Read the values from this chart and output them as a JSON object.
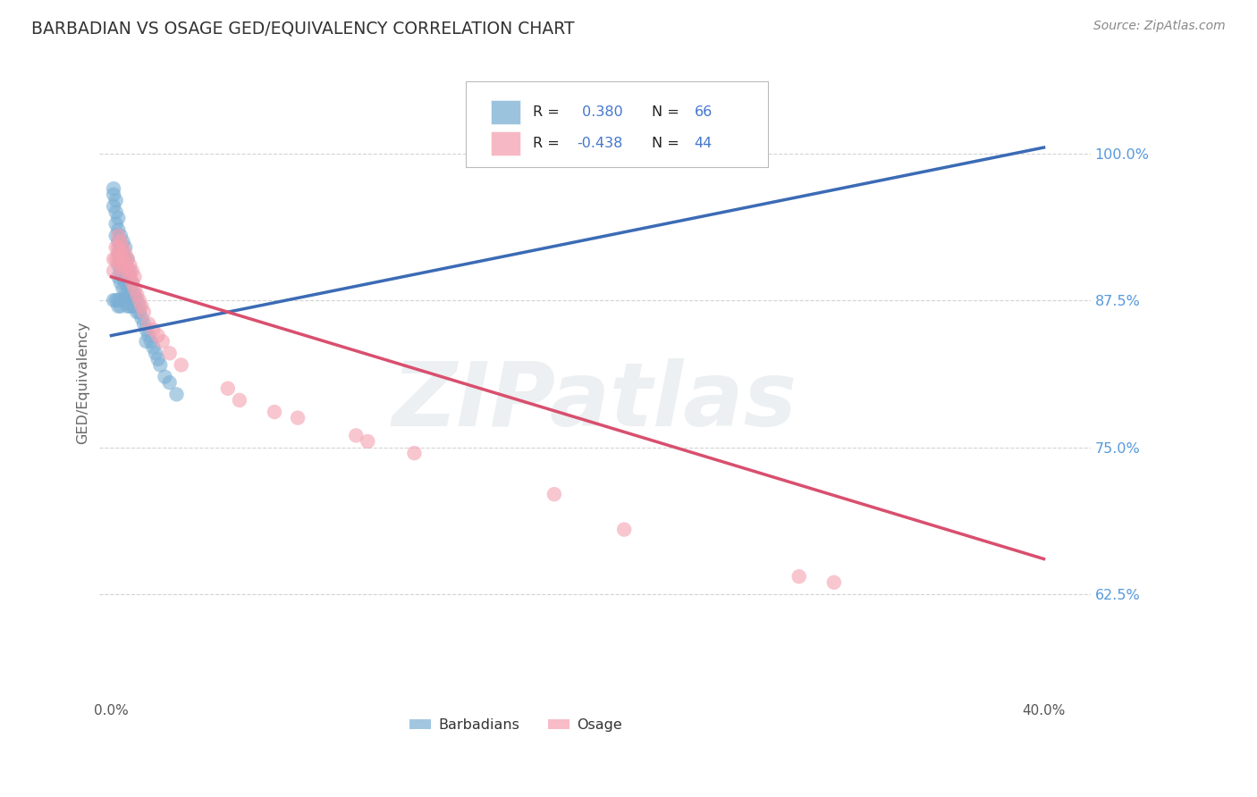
{
  "title": "BARBADIAN VS OSAGE GED/EQUIVALENCY CORRELATION CHART",
  "source": "Source: ZipAtlas.com",
  "xlim": [
    -0.005,
    0.42
  ],
  "ylim": [
    0.535,
    1.075
  ],
  "x_ticks": [
    0.0,
    0.1,
    0.2,
    0.3,
    0.4
  ],
  "x_tick_labels": [
    "0.0%",
    "",
    "",
    "",
    "40.0%"
  ],
  "y_ticks": [
    0.625,
    0.75,
    0.875,
    1.0
  ],
  "y_tick_labels": [
    "62.5%",
    "75.0%",
    "87.5%",
    "100.0%"
  ],
  "blue_R": 0.38,
  "blue_N": 66,
  "pink_R": -0.438,
  "pink_N": 44,
  "blue_color": "#7BAFD4",
  "pink_color": "#F4A0B0",
  "blue_line_color": "#3B6BB5",
  "pink_line_color": "#D94F6E",
  "ylabel": "GED/Equivalency",
  "watermark": "ZIPatlas",
  "watermark_color": "#AABBC8",
  "bg_color": "#FFFFFF",
  "grid_color": "#CCCCCC",
  "title_color": "#333333",
  "source_color": "#888888",
  "label_color_right": "#5599DD",
  "label_color_bottom": "#555555",
  "legend_text_color": "#222222",
  "legend_value_color": "#4477CC",
  "blue_x": [
    0.001,
    0.001,
    0.001,
    0.002,
    0.002,
    0.002,
    0.002,
    0.003,
    0.003,
    0.003,
    0.003,
    0.003,
    0.003,
    0.004,
    0.004,
    0.004,
    0.004,
    0.004,
    0.005,
    0.005,
    0.005,
    0.005,
    0.005,
    0.006,
    0.006,
    0.006,
    0.006,
    0.006,
    0.007,
    0.007,
    0.007,
    0.007,
    0.007,
    0.008,
    0.008,
    0.008,
    0.008,
    0.009,
    0.009,
    0.009,
    0.01,
    0.01,
    0.01,
    0.011,
    0.011,
    0.012,
    0.012,
    0.013,
    0.014,
    0.015,
    0.015,
    0.016,
    0.017,
    0.018,
    0.019,
    0.02,
    0.021,
    0.023,
    0.025,
    0.028,
    0.001,
    0.002,
    0.003,
    0.004,
    0.003,
    0.004
  ],
  "blue_y": [
    0.97,
    0.965,
    0.955,
    0.96,
    0.95,
    0.94,
    0.93,
    0.945,
    0.935,
    0.925,
    0.915,
    0.905,
    0.895,
    0.93,
    0.92,
    0.91,
    0.9,
    0.89,
    0.925,
    0.915,
    0.905,
    0.895,
    0.885,
    0.92,
    0.91,
    0.9,
    0.89,
    0.88,
    0.91,
    0.9,
    0.89,
    0.88,
    0.87,
    0.9,
    0.89,
    0.88,
    0.87,
    0.89,
    0.88,
    0.87,
    0.88,
    0.875,
    0.87,
    0.875,
    0.865,
    0.87,
    0.865,
    0.86,
    0.855,
    0.85,
    0.84,
    0.845,
    0.84,
    0.835,
    0.83,
    0.825,
    0.82,
    0.81,
    0.805,
    0.795,
    0.875,
    0.875,
    0.875,
    0.875,
    0.87,
    0.87
  ],
  "pink_x": [
    0.001,
    0.001,
    0.002,
    0.002,
    0.003,
    0.003,
    0.003,
    0.004,
    0.004,
    0.004,
    0.005,
    0.005,
    0.005,
    0.006,
    0.006,
    0.007,
    0.007,
    0.008,
    0.008,
    0.009,
    0.009,
    0.01,
    0.01,
    0.011,
    0.012,
    0.013,
    0.014,
    0.016,
    0.018,
    0.02,
    0.022,
    0.025,
    0.03,
    0.05,
    0.055,
    0.07,
    0.08,
    0.105,
    0.11,
    0.13,
    0.19,
    0.22,
    0.295,
    0.31
  ],
  "pink_y": [
    0.91,
    0.9,
    0.92,
    0.91,
    0.93,
    0.92,
    0.91,
    0.925,
    0.915,
    0.905,
    0.92,
    0.91,
    0.9,
    0.915,
    0.905,
    0.91,
    0.9,
    0.905,
    0.895,
    0.9,
    0.89,
    0.895,
    0.885,
    0.88,
    0.875,
    0.87,
    0.865,
    0.855,
    0.85,
    0.845,
    0.84,
    0.83,
    0.82,
    0.8,
    0.79,
    0.78,
    0.775,
    0.76,
    0.755,
    0.745,
    0.71,
    0.68,
    0.64,
    0.635
  ],
  "blue_line_x0": 0.0,
  "blue_line_x1": 0.4,
  "blue_line_y0": 0.845,
  "blue_line_y1": 1.005,
  "pink_line_x0": 0.0,
  "pink_line_x1": 0.4,
  "pink_line_y0": 0.895,
  "pink_line_y1": 0.655
}
